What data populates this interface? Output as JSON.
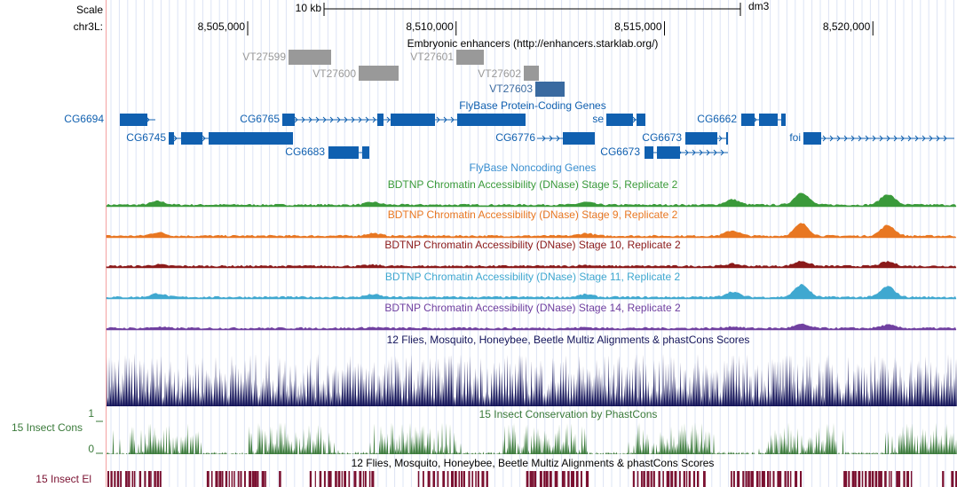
{
  "ruler": {
    "scale_label": "Scale",
    "scale_bar": "10 kb",
    "assembly": "dm3",
    "chrom": "chr3L:",
    "positions": [
      {
        "value": 8505000,
        "label": "8,505,000"
      },
      {
        "value": 8510000,
        "label": "8,510,000"
      },
      {
        "value": 8515000,
        "label": "8,515,000"
      },
      {
        "value": 8520000,
        "label": "8,520,000"
      }
    ]
  },
  "enhancers": {
    "title": "Embryonic enhancers (http://enhancers.starklab.org/)",
    "items": [
      "VT27599",
      "VT27600",
      "VT27601",
      "VT27602",
      "VT27603"
    ]
  },
  "genes": {
    "title": "FlyBase Protein-Coding Genes",
    "items": [
      "CG6694",
      "CG6745",
      "CG6765",
      "CG6683",
      "CG6776",
      "se",
      "CG6673",
      "CG6673",
      "CG6662",
      "foi"
    ]
  },
  "noncoding": {
    "title": "FlyBase Noncoding Genes"
  },
  "dnase": [
    "BDTNP Chromatin Accessibility (DNase) Stage 5, Replicate 2",
    "BDTNP Chromatin Accessibility (DNase) Stage 9, Replicate 2",
    "BDTNP Chromatin Accessibility (DNase) Stage 10, Replicate 2",
    "BDTNP Chromatin Accessibility (DNase) Stage 11, Replicate 2",
    "BDTNP Chromatin Accessibility (DNase) Stage 14, Replicate 2"
  ],
  "multiz": {
    "title": "12 Flies, Mosquito, Honeybee, Beetle Multiz Alignments & phastCons Scores"
  },
  "cons": {
    "title": "15 Insect Conservation by PhastCons",
    "label": "15 Insect Cons",
    "ymax": "1",
    "ymin": "0"
  },
  "elements": {
    "title": "12 Flies, Mosquito, Honeybee, Beetle Multiz Alignments & phastCons Scores",
    "label": "15 Insect El"
  }
}
